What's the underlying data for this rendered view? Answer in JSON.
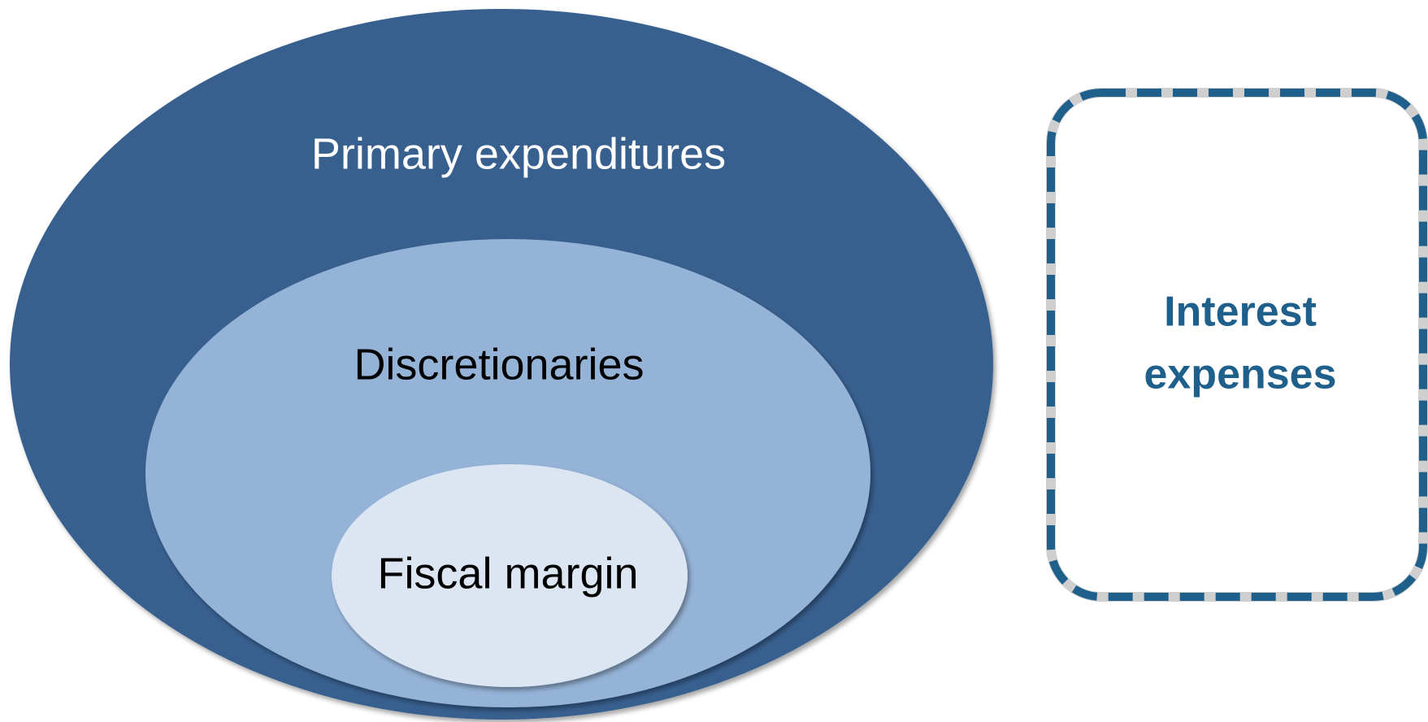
{
  "nodes": [
    {
      "label": "Primary expenditures"
    },
    {
      "label": "Discretionaries"
    },
    {
      "label": "Fiscal margin"
    },
    {
      "label": [
        "Interest",
        "expenses"
      ]
    }
  ]
}
